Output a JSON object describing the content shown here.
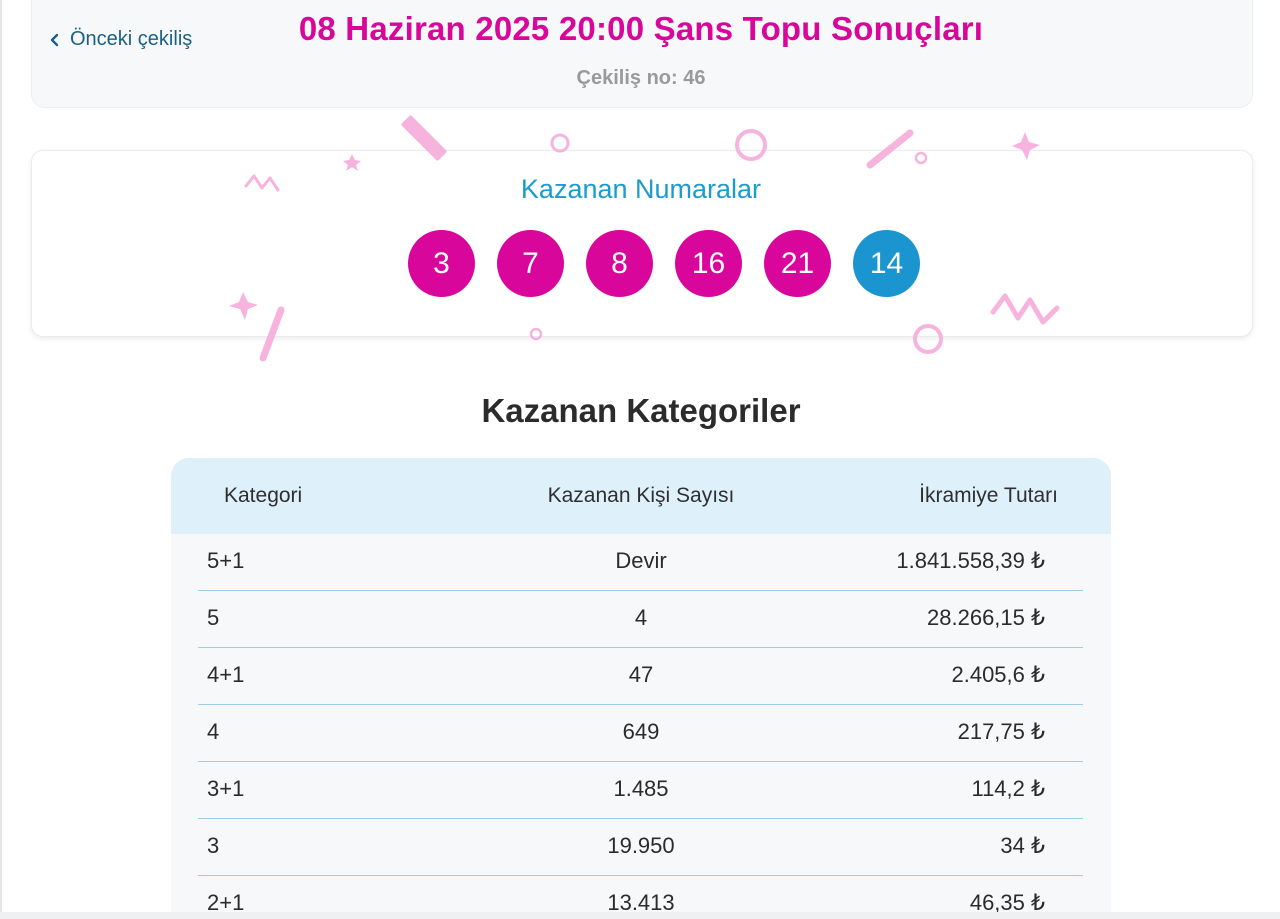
{
  "header": {
    "prev_label": "Önceki çekiliş",
    "title": "08 Haziran 2025 20:00 Şans Topu Sonuçları",
    "draw_number": "Çekiliş no: 46"
  },
  "winning_numbers": {
    "title": "Kazanan Numaralar",
    "numbers": [
      "3",
      "7",
      "8",
      "16",
      "21"
    ],
    "bonus": "14"
  },
  "categories": {
    "title": "Kazanan Kategoriler",
    "columns": [
      "Kategori",
      "Kazanan Kişi Sayısı",
      "İkramiye Tutarı"
    ],
    "rows": [
      {
        "category": "5+1",
        "winners": "Devir",
        "prize": "1.841.558,39 ₺"
      },
      {
        "category": "5",
        "winners": "4",
        "prize": "28.266,15 ₺"
      },
      {
        "category": "4+1",
        "winners": "47",
        "prize": "2.405,6 ₺"
      },
      {
        "category": "4",
        "winners": "649",
        "prize": "217,75 ₺"
      },
      {
        "category": "3+1",
        "winners": "1.485",
        "prize": "114,2 ₺"
      },
      {
        "category": "3",
        "winners": "19.950",
        "prize": "34 ₺"
      },
      {
        "category": "2+1",
        "winners": "13.413",
        "prize": "46,35 ₺"
      }
    ]
  },
  "colors": {
    "title_magenta": "#d6079a",
    "ball_magenta": "#d9069c",
    "ball_bonus_blue": "#1b95cf",
    "accent_blue": "#1a9ccd",
    "table_header_bg": "#def1fb"
  }
}
